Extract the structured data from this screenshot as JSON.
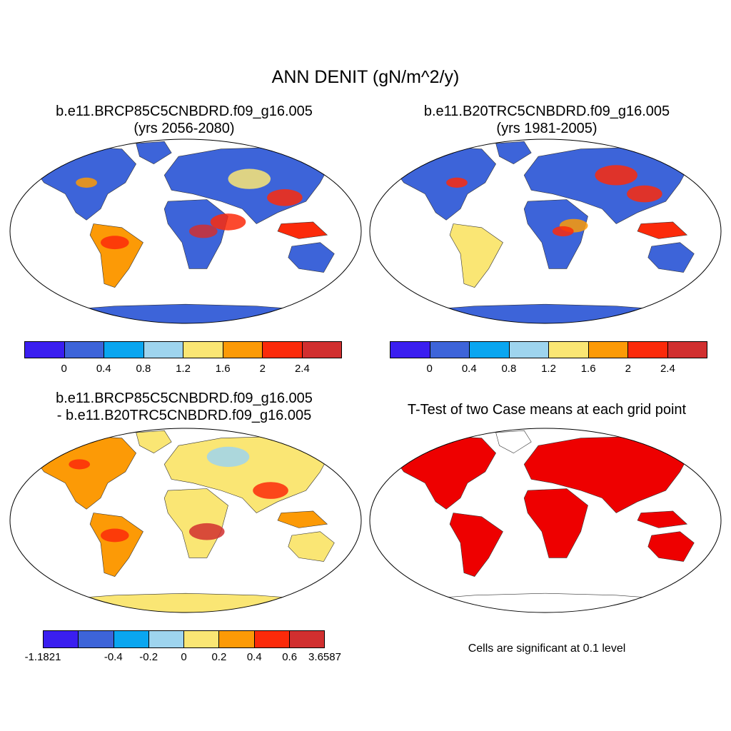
{
  "main_title": "ANN DENIT (gN/m^2/y)",
  "panels": [
    {
      "title1": "b.e11.BRCP85C5CNBDRD.f09_g16.005",
      "title2": "(yrs 2056-2080)"
    },
    {
      "title1": "b.e11.B20TRC5CNBDRD.f09_g16.005",
      "title2": "(yrs 1981-2005)"
    },
    {
      "title1": "b.e11.BRCP85C5CNBDRD.f09_g16.005",
      "title2": "- b.e11.B20TRC5CNBDRD.f09_g16.005"
    },
    {
      "title1": "T-Test of two Case means at each grid point",
      "title2": ""
    }
  ],
  "colorbar_abs": {
    "colors": [
      "#3a1ef0",
      "#3d64d9",
      "#0aa6f0",
      "#9ed4ee",
      "#fae674",
      "#fc9a06",
      "#fb2a0a",
      "#d12f2f"
    ],
    "labels": [
      "0",
      "0.4",
      "0.8",
      "1.2",
      "1.6",
      "2",
      "2.4"
    ]
  },
  "colorbar_diff": {
    "colors": [
      "#3a1ef0",
      "#3d64d9",
      "#0aa6f0",
      "#9ed4ee",
      "#fae674",
      "#fc9a06",
      "#fb2a0a",
      "#d12f2f"
    ],
    "labels": [
      "-1.1821",
      "-0.4",
      "-0.2",
      "0",
      "0.2",
      "0.4",
      "0.6",
      "3.6587"
    ]
  },
  "significance_note": "Cells are significant at 0.1 level",
  "significance_color": "#ee0000",
  "land_palette": {
    "blue": "#3d64d9",
    "lightblue": "#9ed4ee",
    "cyan": "#0aa6f0",
    "yellow": "#fae674",
    "orange": "#fc9a06",
    "red": "#fb2a0a",
    "darkred": "#d12f2f"
  }
}
